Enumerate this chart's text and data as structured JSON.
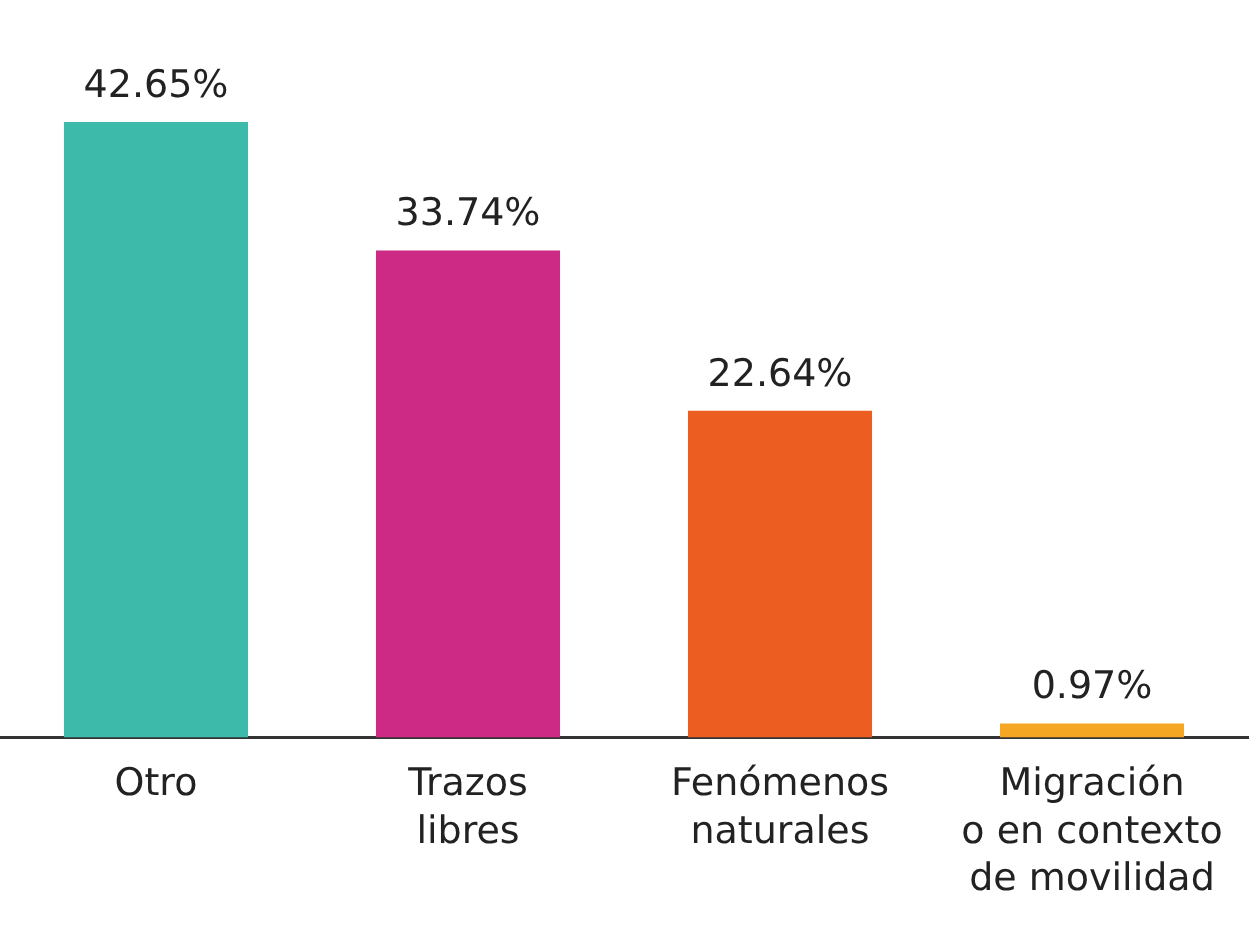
{
  "chart_data": {
    "type": "bar",
    "categories": [
      "Otro",
      "Trazos\nlibres",
      "Fenómenos\nnaturales",
      "Migración\no en contexto\nde movilidad"
    ],
    "values": [
      42.65,
      33.74,
      22.64,
      0.97
    ],
    "colors": [
      "#3dbaa9",
      "#cc2a85",
      "#ec5d22",
      "#f5a623"
    ],
    "value_labels": [
      "42.65%",
      "33.74%",
      "22.64%",
      "0.97%"
    ],
    "grid": false,
    "legend": false
  }
}
